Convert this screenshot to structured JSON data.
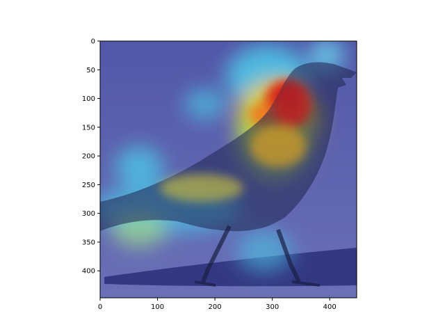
{
  "chart_data": {
    "type": "heatmap",
    "title": "",
    "xlabel": "",
    "ylabel": "",
    "xlim": [
      0,
      447
    ],
    "ylim": [
      447,
      0
    ],
    "x_ticks": [
      0,
      100,
      200,
      300,
      400
    ],
    "y_ticks": [
      0,
      50,
      100,
      150,
      200,
      250,
      300,
      350,
      400
    ],
    "grid": false,
    "image_subject": "crow-with-attention-heatmap",
    "colormap": "jet",
    "colors": {
      "background_low": "#3a3f9c",
      "mid": "#4cc4e6",
      "high": "#ffd000",
      "peak": "#c8141a"
    }
  }
}
